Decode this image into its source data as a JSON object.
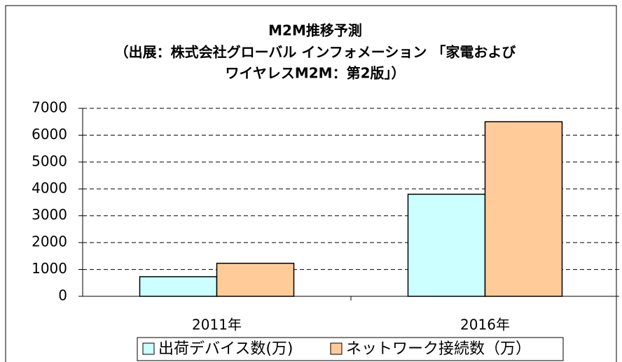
{
  "chart_data": {
    "type": "bar",
    "title": [
      "M2M推移予測",
      "（出展：株式会社グローバル インフォメーション 「家電および",
      "ワイヤレスM2M：第2版」）"
    ],
    "categories": [
      "2011年",
      "2016年"
    ],
    "series": [
      {
        "name": "出荷デバイス数(万)",
        "color": "#ccffff",
        "values": [
          730,
          3800
        ]
      },
      {
        "name": "ネットワーク接続数（万）",
        "color": "#ffcc99",
        "values": [
          1230,
          6500
        ]
      }
    ],
    "ylim": [
      0,
      7000
    ],
    "yticks": [
      0,
      1000,
      2000,
      3000,
      4000,
      5000,
      6000,
      7000
    ],
    "grid": true
  }
}
